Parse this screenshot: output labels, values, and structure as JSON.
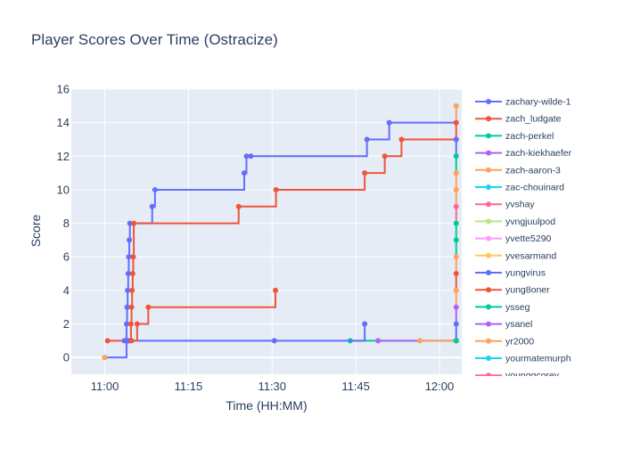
{
  "chart_data": {
    "type": "line",
    "line_shape": "step-after",
    "title": "Player Scores Over Time (Ostracize)",
    "xlabel": "Time (HH:MM)",
    "ylabel": "Score",
    "x_unit": "minutes after 11:00",
    "xlim": [
      -6,
      64
    ],
    "ylim": [
      -1,
      16
    ],
    "x_ticks": [
      {
        "value": 0,
        "label": "11:00"
      },
      {
        "value": 15,
        "label": "11:15"
      },
      {
        "value": 30,
        "label": "11:30"
      },
      {
        "value": 45,
        "label": "11:45"
      },
      {
        "value": 60,
        "label": "12:00"
      }
    ],
    "y_ticks": [
      0,
      2,
      4,
      6,
      8,
      10,
      12,
      14,
      16
    ],
    "plot_background": "#e5ecf6",
    "grid": true,
    "legend_position": "right (scrollable, partially visible)",
    "series": [
      {
        "name": "zachary-wilde-1",
        "color": "#636efa",
        "x": [
          0,
          3.9,
          4.0,
          4.1,
          4.2,
          4.3,
          4.4,
          4.5,
          8.5,
          9.0,
          25.0,
          25.4,
          26.2,
          47.0,
          51.0,
          63.0
        ],
        "y": [
          0,
          2,
          3,
          4,
          5,
          6,
          7,
          8,
          9,
          10,
          11,
          12,
          12,
          13,
          14,
          14
        ]
      },
      {
        "name": "zach_ludgate",
        "color": "#ef553b",
        "x": [
          0.5,
          4.7,
          4.8,
          4.9,
          5.0,
          5.1,
          5.2,
          24.0,
          30.7,
          46.6,
          50.2,
          53.2,
          63.0
        ],
        "y": [
          1,
          2,
          3,
          4,
          5,
          6,
          8,
          9,
          10,
          11,
          12,
          13,
          13
        ]
      },
      {
        "name": "zach-perkel",
        "color": "#00cc96",
        "x": [
          44.0,
          63.0
        ],
        "y": [
          1,
          1
        ]
      },
      {
        "name": "zach-kiekhaefer",
        "color": "#ab63fa",
        "x": [
          49.0,
          63.0
        ],
        "y": [
          1,
          1
        ]
      },
      {
        "name": "zach-aaron-3",
        "color": "#ffa15a",
        "x": [
          56.5,
          63.0
        ],
        "y": [
          1,
          1
        ]
      },
      {
        "name": "zac-chouinard",
        "color": "#19d3f3",
        "x": [],
        "y": []
      },
      {
        "name": "yvshay",
        "color": "#ff6692",
        "x": [],
        "y": []
      },
      {
        "name": "yvngjuulpod",
        "color": "#b6e880",
        "x": [],
        "y": []
      },
      {
        "name": "yvette5290",
        "color": "#ff97ff",
        "x": [],
        "y": []
      },
      {
        "name": "yvesarmand",
        "color": "#fecb52",
        "x": [],
        "y": []
      },
      {
        "name": "yungvirus",
        "color": "#636efa",
        "x": [
          3.5,
          4.2,
          4.4,
          30.4,
          46.6
        ],
        "y": [
          1,
          1,
          1,
          1,
          2
        ]
      },
      {
        "name": "yung8oner",
        "color": "#ef553b",
        "x": [
          4.8,
          5.8,
          7.8,
          30.6
        ],
        "y": [
          1,
          2,
          3,
          4
        ]
      },
      {
        "name": "ysseg",
        "color": "#00cc96",
        "x": [],
        "y": []
      },
      {
        "name": "ysanel",
        "color": "#ab63fa",
        "x": [],
        "y": []
      },
      {
        "name": "yr2000",
        "color": "#ffa15a",
        "x": [
          0
        ],
        "y": [
          0
        ]
      },
      {
        "name": "yourmatemurph",
        "color": "#19d3f3",
        "x": [],
        "y": []
      },
      {
        "name": "younggcorey",
        "color": "#ff6692",
        "x": [],
        "y": []
      }
    ],
    "vertical_cluster": {
      "x": 63.0,
      "values": [
        1,
        2,
        3,
        4,
        5,
        6,
        7,
        8,
        9,
        10,
        11,
        12,
        13,
        14,
        15
      ],
      "colors": [
        "#00cc96",
        "#636efa",
        "#ab63fa",
        "#ffa15a",
        "#ef553b",
        "#ffa15a",
        "#00cc96",
        "#00cc96",
        "#ff6692",
        "#ffa15a",
        "#ffa15a",
        "#00cc96",
        "#636efa",
        "#ef553b",
        "#ffa15a"
      ]
    }
  }
}
